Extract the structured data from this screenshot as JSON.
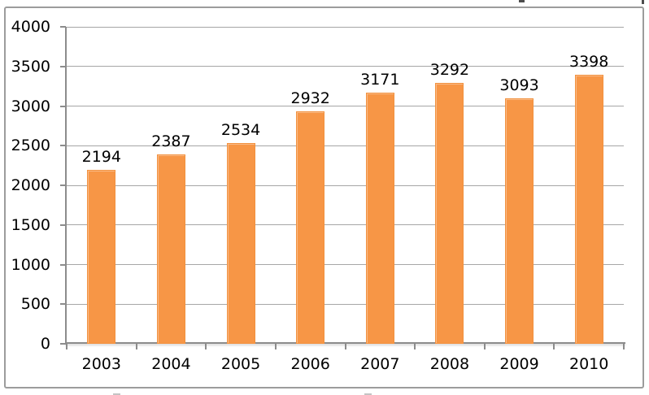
{
  "chart_data": {
    "type": "bar",
    "title": "",
    "xlabel": "",
    "ylabel": "",
    "categories": [
      "2003",
      "2004",
      "2005",
      "2006",
      "2007",
      "2008",
      "2009",
      "2010"
    ],
    "values": [
      2194,
      2387,
      2534,
      2932,
      3171,
      3292,
      3093,
      3398
    ],
    "data_labels": [
      "2194",
      "2387",
      "2534",
      "2932",
      "3171",
      "3292",
      "3093",
      "3398"
    ],
    "ylim": [
      0,
      4000
    ],
    "ytick_interval": 500,
    "ytick_labels": [
      "0",
      "500",
      "1000",
      "1500",
      "2000",
      "2500",
      "3000",
      "3500",
      "4000"
    ],
    "grid": true,
    "legend": "none",
    "colors": {
      "bar_fill": "#F79646",
      "bar_edge": "#F2913E",
      "gridline": "#A6A6A6",
      "axis": "#8C8C8C",
      "frame_border": "#9C9C9C",
      "text": "#000000",
      "background": "#FFFFFF"
    }
  }
}
